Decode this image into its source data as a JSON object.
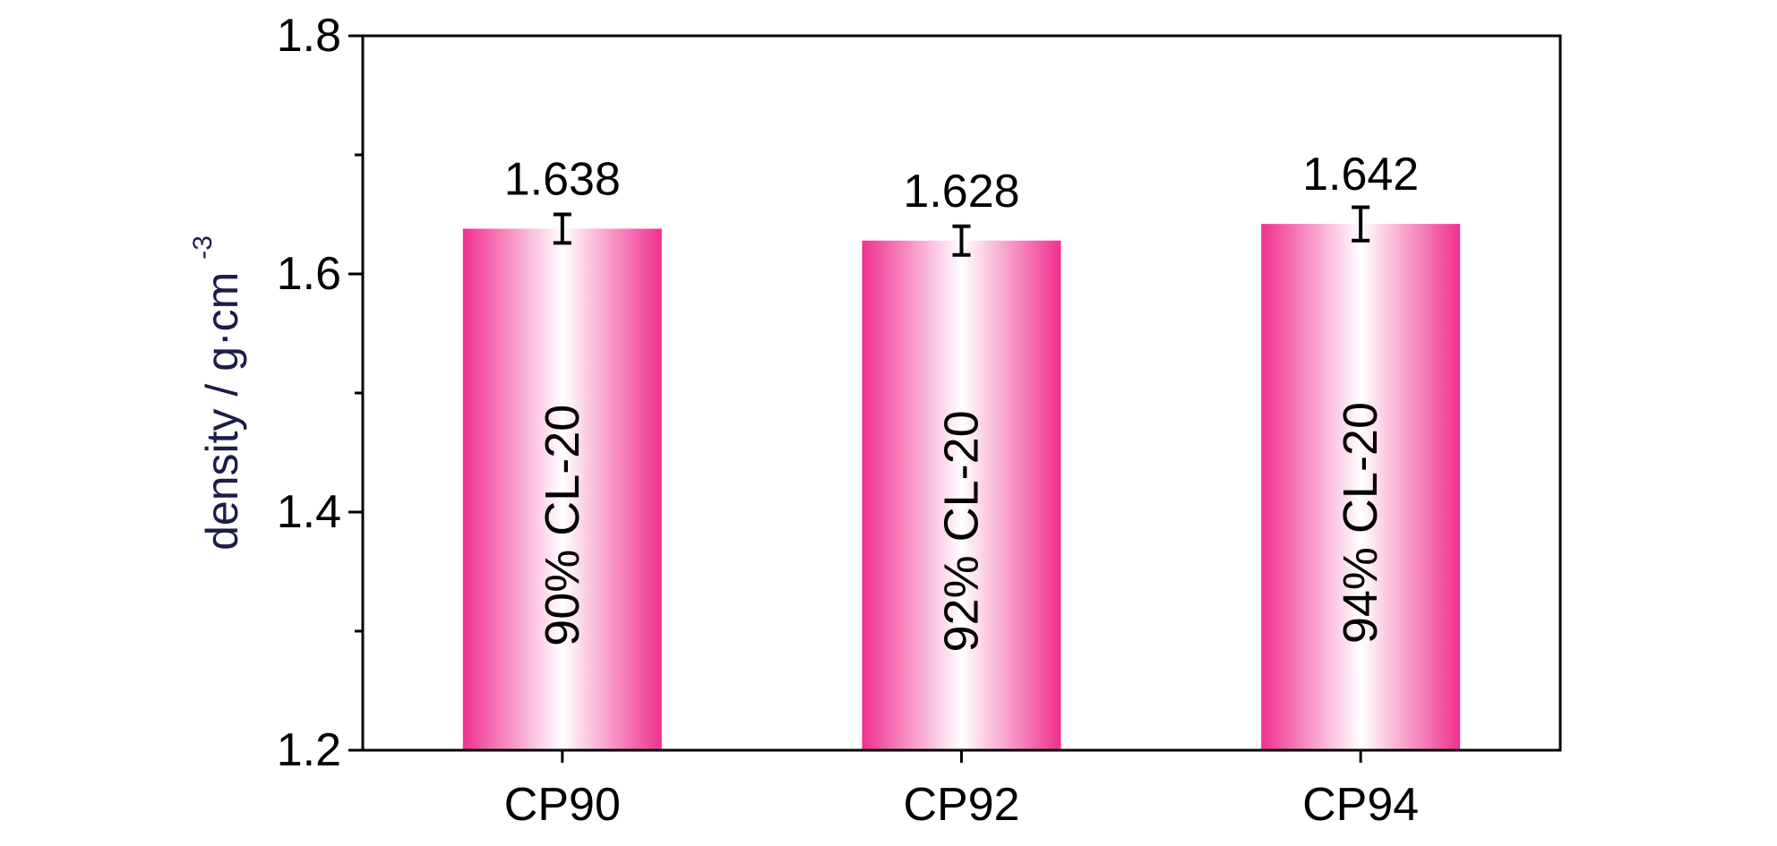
{
  "chart_data": {
    "type": "bar",
    "categories": [
      "CP90",
      "CP92",
      "CP94"
    ],
    "values": [
      1.638,
      1.628,
      1.642
    ],
    "error": [
      0.012,
      0.012,
      0.014
    ],
    "value_labels": [
      "1.638",
      "1.628",
      "1.642"
    ],
    "bar_labels": [
      "90% CL-20",
      "92% CL-20",
      "94% CL-20"
    ],
    "ylabel": "density / g·cm",
    "ylabel_superscript": "-3",
    "ylim": [
      1.2,
      1.8
    ],
    "yticks": [
      1.2,
      1.4,
      1.6,
      1.8
    ],
    "ytick_labels": [
      "1.2",
      "1.4",
      "1.6",
      "1.8"
    ],
    "minor_yticks": [
      1.3,
      1.5,
      1.7
    ],
    "grid": false,
    "colors": {
      "bar_edge": "#f0308f",
      "bar_center": "#ffffff",
      "axis": "#000000",
      "ylabel": "#1d1d4a"
    }
  }
}
